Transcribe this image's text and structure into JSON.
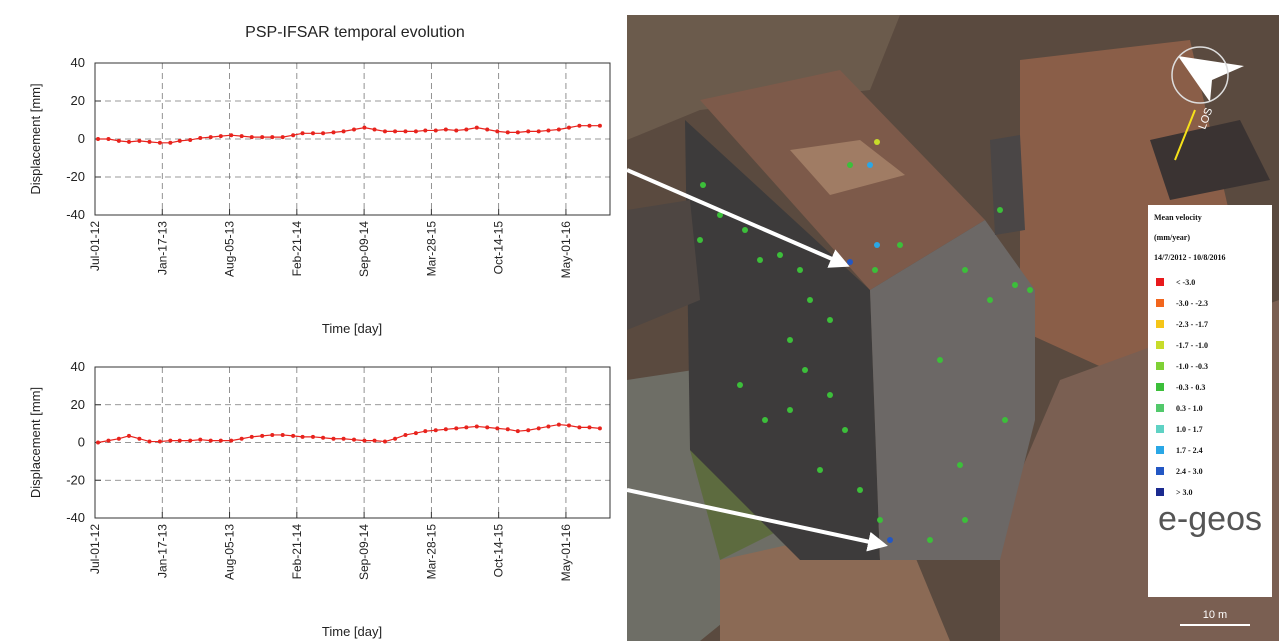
{
  "chart_data": [
    {
      "type": "line",
      "title": "PSP-IFSAR temporal evolution",
      "xlabel": "Time [day]",
      "ylabel": "Displacement [mm]",
      "x": [
        "2012-07-10",
        "2012-08-10",
        "2012-09-10",
        "2012-10-10",
        "2012-11-10",
        "2012-12-10",
        "2013-01-10",
        "2013-02-10",
        "2013-03-10",
        "2013-04-10",
        "2013-05-10",
        "2013-06-10",
        "2013-07-10",
        "2013-08-10",
        "2013-09-10",
        "2013-10-10",
        "2013-11-10",
        "2013-12-10",
        "2014-01-10",
        "2014-02-10",
        "2014-03-10",
        "2014-04-10",
        "2014-05-10",
        "2014-06-10",
        "2014-07-10",
        "2014-08-10",
        "2014-09-10",
        "2014-10-10",
        "2014-11-10",
        "2014-12-10",
        "2015-01-10",
        "2015-02-10",
        "2015-03-10",
        "2015-04-10",
        "2015-05-10",
        "2015-06-10",
        "2015-07-10",
        "2015-08-10",
        "2015-09-10",
        "2015-10-10",
        "2015-11-10",
        "2015-12-10",
        "2016-01-10",
        "2016-02-10",
        "2016-03-10",
        "2016-04-10",
        "2016-05-10",
        "2016-06-10",
        "2016-07-10",
        "2016-08-10"
      ],
      "values": [
        0,
        0,
        -1,
        -1.5,
        -1,
        -1.5,
        -2,
        -2,
        -1,
        -0.5,
        0.5,
        1,
        1.5,
        2,
        1.5,
        1,
        1,
        1,
        1,
        2,
        3,
        3,
        3,
        3.5,
        4,
        5,
        6,
        5,
        4,
        4,
        4,
        4,
        4.5,
        4.5,
        5,
        4.5,
        5,
        6,
        5,
        4,
        3.5,
        3.5,
        4,
        4,
        4.5,
        5,
        6,
        7,
        7,
        7
      ],
      "color": "#e8231d",
      "xlim": [
        "2012-07-01",
        "2016-09-09"
      ],
      "xticks": [
        {
          "value": "2012-07-01",
          "label": "Jul-01-12"
        },
        {
          "value": "2013-01-17",
          "label": "Jan-17-13"
        },
        {
          "value": "2013-08-05",
          "label": "Aug-05-13"
        },
        {
          "value": "2014-02-21",
          "label": "Feb-21-14"
        },
        {
          "value": "2014-09-09",
          "label": "Sep-09-14"
        },
        {
          "value": "2015-03-28",
          "label": "Mar-28-15"
        },
        {
          "value": "2015-10-14",
          "label": "Oct-14-15"
        },
        {
          "value": "2016-05-01",
          "label": "May-01-16"
        }
      ],
      "ylim": [
        -40,
        40
      ],
      "yticks": [
        40,
        20,
        0,
        -20,
        -40
      ],
      "grid": true
    },
    {
      "type": "line",
      "xlabel": "Time [day]",
      "ylabel": "Displacement [mm]",
      "x": [
        "2012-07-10",
        "2012-08-10",
        "2012-09-10",
        "2012-10-10",
        "2012-11-10",
        "2012-12-10",
        "2013-01-10",
        "2013-02-10",
        "2013-03-10",
        "2013-04-10",
        "2013-05-10",
        "2013-06-10",
        "2013-07-10",
        "2013-08-10",
        "2013-09-10",
        "2013-10-10",
        "2013-11-10",
        "2013-12-10",
        "2014-01-10",
        "2014-02-10",
        "2014-03-10",
        "2014-04-10",
        "2014-05-10",
        "2014-06-10",
        "2014-07-10",
        "2014-08-10",
        "2014-09-10",
        "2014-10-10",
        "2014-11-10",
        "2014-12-10",
        "2015-01-10",
        "2015-02-10",
        "2015-03-10",
        "2015-04-10",
        "2015-05-10",
        "2015-06-10",
        "2015-07-10",
        "2015-08-10",
        "2015-09-10",
        "2015-10-10",
        "2015-11-10",
        "2015-12-10",
        "2016-01-10",
        "2016-02-10",
        "2016-03-10",
        "2016-04-10",
        "2016-05-10",
        "2016-06-10",
        "2016-07-10",
        "2016-08-10"
      ],
      "values": [
        0,
        1,
        2,
        3.5,
        2,
        0.5,
        0.5,
        1,
        1,
        1,
        1.5,
        1,
        1,
        1,
        2,
        3,
        3.5,
        4,
        4,
        3.5,
        3,
        3,
        2.5,
        2,
        2,
        1.5,
        1,
        1,
        0.5,
        2,
        4,
        5,
        6,
        6.5,
        7,
        7.5,
        8,
        8.5,
        8,
        7.5,
        7,
        6,
        6.5,
        7.5,
        8.5,
        9.5,
        9,
        8,
        8,
        7.5
      ],
      "color": "#e8231d",
      "xlim": [
        "2012-07-01",
        "2016-09-09"
      ],
      "xticks": [
        {
          "value": "2012-07-01",
          "label": "Jul-01-12"
        },
        {
          "value": "2013-01-17",
          "label": "Jan-17-13"
        },
        {
          "value": "2013-08-05",
          "label": "Aug-05-13"
        },
        {
          "value": "2014-02-21",
          "label": "Feb-21-14"
        },
        {
          "value": "2014-09-09",
          "label": "Sep-09-14"
        },
        {
          "value": "2015-03-28",
          "label": "Mar-28-15"
        },
        {
          "value": "2015-10-14",
          "label": "Oct-14-15"
        },
        {
          "value": "2016-05-01",
          "label": "May-01-16"
        }
      ],
      "ylim": [
        -40,
        40
      ],
      "yticks": [
        40,
        20,
        0,
        -20,
        -40
      ],
      "grid": true
    }
  ],
  "map": {
    "legend_title": [
      "Mean velocity",
      "(mm/year)",
      "14/7/2012 - 10/8/2016"
    ],
    "classes": [
      {
        "label": "< -3.0",
        "color": "#e8191c"
      },
      {
        "label": "-3.0 - -2.3",
        "color": "#f2661d"
      },
      {
        "label": "-2.3 - -1.7",
        "color": "#f5c518"
      },
      {
        "label": "-1.7 - -1.0",
        "color": "#c8dc2a"
      },
      {
        "label": "-1.0 - -0.3",
        "color": "#7fd136"
      },
      {
        "label": "-0.3 -  0.3",
        "color": "#3cbf3a"
      },
      {
        "label": "0.3 - 1.0",
        "color": "#52c96b"
      },
      {
        "label": "1.0 - 1.7",
        "color": "#5fd2c4"
      },
      {
        "label": "1.7 - 2.4",
        "color": "#2aa7e6"
      },
      {
        "label": "2.4 - 3.0",
        "color": "#2357c4"
      },
      {
        "label": "> 3.0",
        "color": "#1b2a8f"
      }
    ],
    "logo": "e-geos",
    "los": "LOS",
    "scale": "10 m"
  }
}
